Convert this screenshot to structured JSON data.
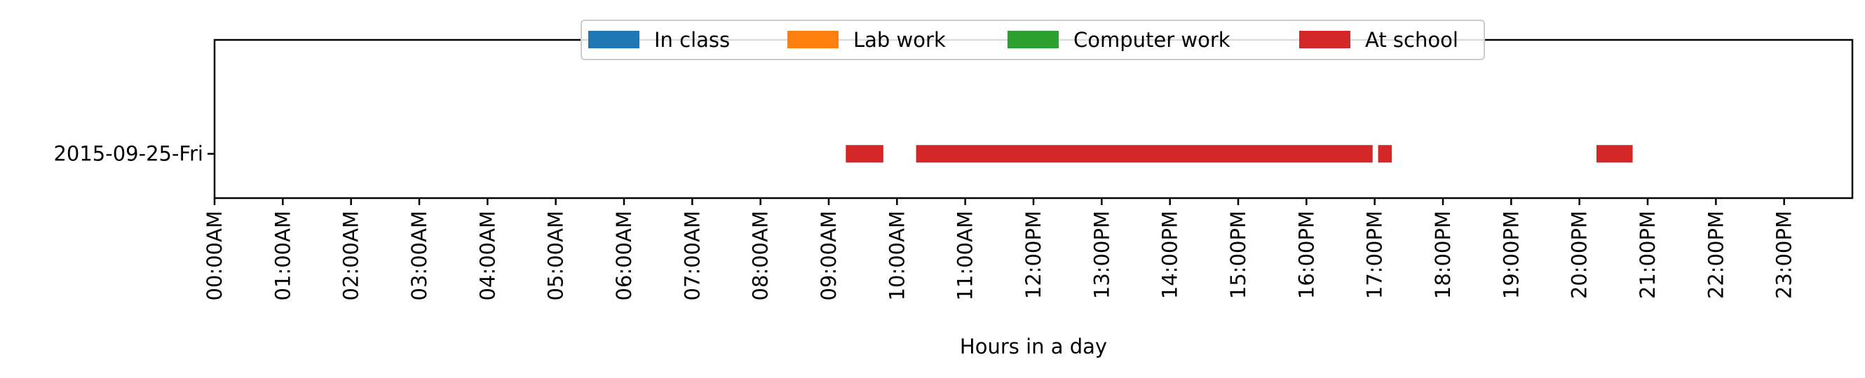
{
  "chart_data": {
    "type": "timeline",
    "title": "",
    "xlabel": "Hours in a day",
    "ylabel": "",
    "xlim": [
      0,
      24
    ],
    "grid": false,
    "legend_placement": "top-center",
    "categories": [
      "2015-09-25-Fri"
    ],
    "tick_labels": [
      "00:00AM",
      "01:00AM",
      "02:00AM",
      "03:00AM",
      "04:00AM",
      "05:00AM",
      "06:00AM",
      "07:00AM",
      "08:00AM",
      "09:00AM",
      "10:00AM",
      "11:00AM",
      "12:00PM",
      "13:00PM",
      "14:00PM",
      "15:00PM",
      "16:00PM",
      "17:00PM",
      "18:00PM",
      "19:00PM",
      "20:00PM",
      "21:00PM",
      "22:00PM",
      "23:00PM"
    ],
    "series": [
      {
        "name": "In class",
        "color": "#1f77b4",
        "intervals": []
      },
      {
        "name": "Lab work",
        "color": "#ff7f0e",
        "intervals": []
      },
      {
        "name": "Computer work",
        "color": "#2ca02c",
        "intervals": []
      },
      {
        "name": "At school",
        "color": "#d62728",
        "intervals": [
          {
            "day": "2015-09-25-Fri",
            "start": 9.25,
            "end": 9.8
          },
          {
            "day": "2015-09-25-Fri",
            "start": 10.28,
            "end": 16.97
          },
          {
            "day": "2015-09-25-Fri",
            "start": 17.05,
            "end": 17.25
          },
          {
            "day": "2015-09-25-Fri",
            "start": 20.25,
            "end": 20.78
          }
        ]
      }
    ]
  }
}
